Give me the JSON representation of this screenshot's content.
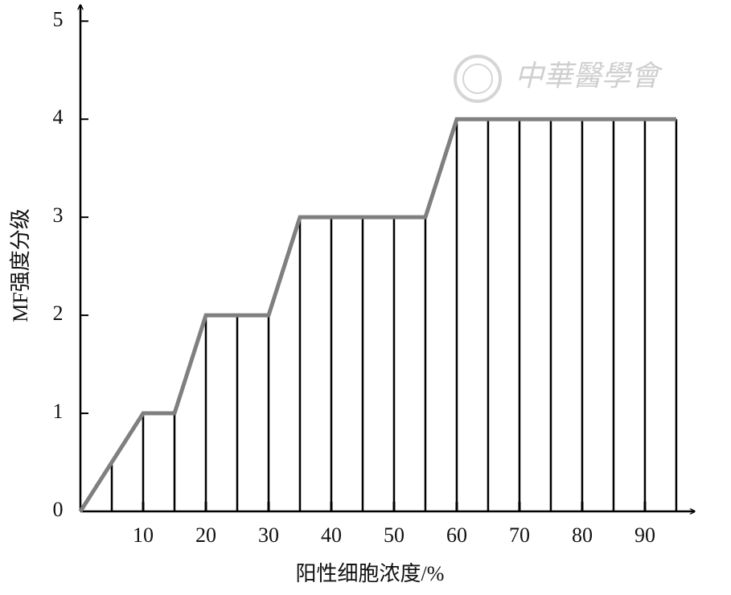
{
  "chart_data": {
    "type": "line",
    "x_label": "阳性细胞浓度/%",
    "y_label": "MF强度分级",
    "watermark": "中華醫學會",
    "x": [
      0,
      5,
      10,
      15,
      20,
      25,
      30,
      35,
      40,
      45,
      50,
      55,
      60,
      65,
      70,
      75,
      80,
      85,
      90,
      95
    ],
    "series": [
      {
        "color": "#7f7f7f",
        "values": [
          0,
          0.5,
          1,
          1,
          2,
          2,
          2,
          3,
          3,
          3,
          3,
          3,
          4,
          4,
          4,
          4,
          4,
          4,
          4,
          4
        ]
      }
    ],
    "drop_lines": true,
    "drop_line_color": "#000000",
    "xlim": [
      0,
      97.7
    ],
    "ylim": [
      0,
      5.15
    ],
    "xticks": [
      10,
      20,
      30,
      40,
      50,
      60,
      70,
      80,
      90
    ],
    "yticks": [
      0,
      1,
      2,
      3,
      4,
      5
    ]
  }
}
